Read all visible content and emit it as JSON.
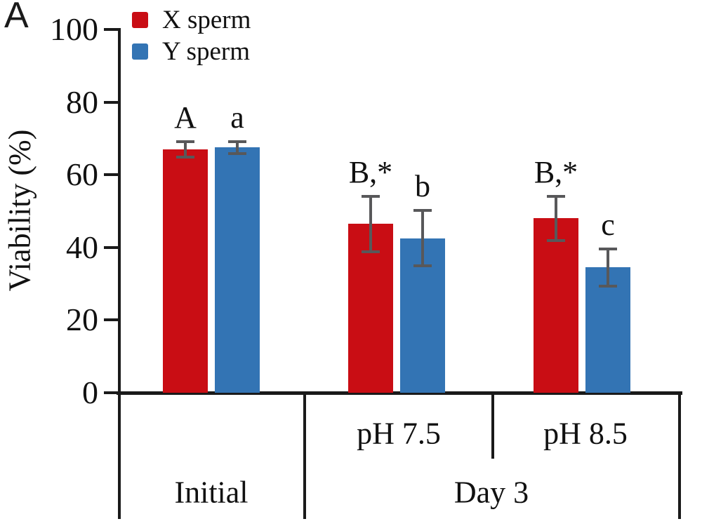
{
  "panel_label": "A",
  "colors": {
    "x_sperm": "#c90d14",
    "y_sperm": "#3374b4",
    "error_bar": "#58585a",
    "axis": "#1a1a1a"
  },
  "axis": {
    "y_label": "Viability (%)",
    "y_ticks": [
      "0",
      "20",
      "40",
      "60",
      "80",
      "100"
    ],
    "y_min": 0,
    "y_max": 100
  },
  "x_axis": {
    "tier1": [
      "",
      "pH 7.5",
      "pH 8.5"
    ],
    "tier2": [
      "Initial",
      "Day 3"
    ]
  },
  "chart_data": {
    "type": "bar",
    "title": "",
    "xlabel": "",
    "ylabel": "Viability (%)",
    "ylim": [
      0,
      100
    ],
    "grid": false,
    "legend_position": "top-left",
    "categories": [
      "Initial",
      "Day 3 pH 7.5",
      "Day 3 pH 8.5"
    ],
    "category_tiers": {
      "upper": [
        "",
        "pH 7.5",
        "pH 8.5"
      ],
      "lower": [
        {
          "label": "Initial",
          "spans": [
            "Initial"
          ]
        },
        {
          "label": "Day 3",
          "spans": [
            "pH 7.5",
            "pH 8.5"
          ]
        }
      ]
    },
    "series": [
      {
        "name": "X sperm",
        "color": "#c90d14",
        "values": [
          67,
          46.5,
          48
        ],
        "errors": [
          2.5,
          8,
          6.5
        ],
        "annotations": [
          "A",
          "B,*",
          "B,*"
        ]
      },
      {
        "name": "Y sperm",
        "color": "#3374b4",
        "values": [
          67.5,
          42.5,
          34.5
        ],
        "errors": [
          2,
          8,
          5.5
        ],
        "annotations": [
          "a",
          "b",
          "c"
        ]
      }
    ]
  }
}
